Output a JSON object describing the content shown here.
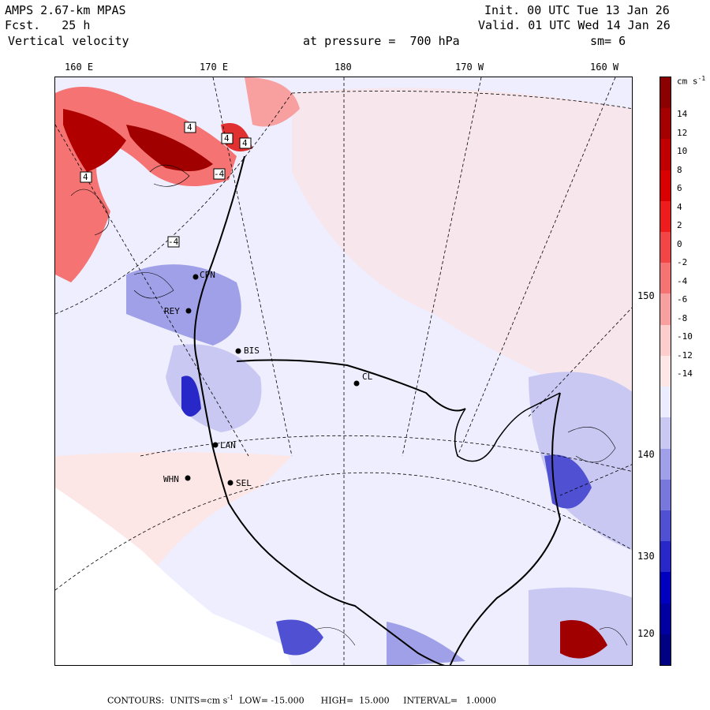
{
  "header": {
    "model": "AMPS 2.67-km MPAS",
    "forecast": "Fcst.   25 h",
    "field": "Vertical velocity",
    "init": "Init. 00 UTC Tue 13 Jan 26",
    "valid": "Valid. 01 UTC Wed 14 Jan 26",
    "pressure": "at pressure =  700 hPa",
    "smooth": "sm= 6"
  },
  "longitude_labels": [
    "160 E",
    "170 E",
    "180",
    "170 W",
    "160 W"
  ],
  "latitude_labels": [
    "150 W",
    "140 W",
    "130 W",
    "120 W"
  ],
  "stations": [
    "CPN",
    "REY",
    "BIS",
    "CL",
    "LAN",
    "WHN",
    "SEL"
  ],
  "contour_markers": [
    "4",
    "4",
    "4",
    "4",
    "-4",
    "-4"
  ],
  "colorbar": {
    "units": "cm s",
    "units_exp": "-1",
    "tick_labels": [
      "14",
      "12",
      "10",
      "8",
      "6",
      "4",
      "2",
      "0",
      "-2",
      "-4",
      "-6",
      "-8",
      "-10",
      "-12",
      "-14"
    ],
    "colors": [
      "#8b0000",
      "#a50000",
      "#c00000",
      "#d80000",
      "#ee1c1c",
      "#f24646",
      "#f57373",
      "#f8a0a0",
      "#fbcdcd",
      "#fde6e6",
      "#ececff",
      "#c8c8f2",
      "#a0a0e8",
      "#7878dc",
      "#5050d2",
      "#2828c8",
      "#0000be",
      "#0000a0",
      "#000082"
    ]
  },
  "footer": {
    "contours": "CONTOURS:",
    "units": "UNITS=cm s",
    "units_exp": "-1",
    "low": "LOW= -15.000",
    "high": "HIGH=  15.000",
    "interval": "INTERVAL=   1.0000"
  }
}
